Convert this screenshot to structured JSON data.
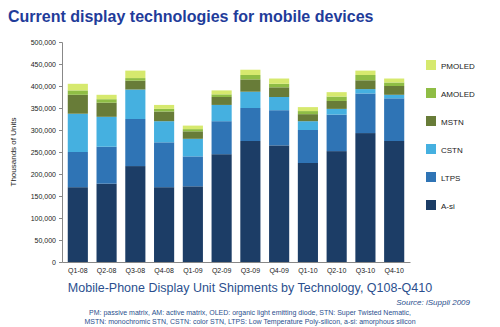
{
  "chart_data": {
    "type": "bar",
    "stacked": true,
    "title": "Current display technologies for mobile devices",
    "y_label": "Thousands of Units",
    "annotations": [
      "Mobile-Phone Display Unit Shipments by Technology, Q108-Q410",
      "Source: iSuppli 2009",
      "PM: passive matrix, AM: active matrix, OLED: organic light emitting diode, STN: Super Twisted Nematic,",
      "MSTN: monochromic STN, CSTN: color STN, LTPS: Low Temperature Poly-silicon, a-si: amorphous silicon"
    ],
    "categories": [
      "Q1-08",
      "Q2-08",
      "Q3-08",
      "Q4-08",
      "Q1-09",
      "Q2-09",
      "Q3-09",
      "Q4-09",
      "Q1-10",
      "Q2-10",
      "Q3-10",
      "Q4-10"
    ],
    "series": [
      {
        "name": "A-si",
        "color": "#1c3d66",
        "values": [
          170000,
          178000,
          218000,
          170000,
          172000,
          245000,
          275000,
          265000,
          225000,
          252000,
          293000,
          275000
        ]
      },
      {
        "name": "LTPS",
        "color": "#2f74b5",
        "values": [
          80000,
          84000,
          107000,
          102000,
          68000,
          75000,
          75000,
          80000,
          75000,
          83000,
          90000,
          97000
        ]
      },
      {
        "name": "CSTN",
        "color": "#45b0e0",
        "values": [
          87000,
          68000,
          67000,
          48000,
          40000,
          37000,
          37000,
          30000,
          20000,
          13000,
          10000,
          8000
        ]
      },
      {
        "name": "MSTN",
        "color": "#687c38",
        "values": [
          43000,
          32000,
          20000,
          22000,
          17000,
          18000,
          28000,
          22000,
          16000,
          18000,
          20000,
          20000
        ]
      },
      {
        "name": "AMOLED",
        "color": "#8fbd45",
        "values": [
          10000,
          8000,
          6000,
          6000,
          5000,
          6000,
          10000,
          8000,
          7000,
          10000,
          12000,
          8000
        ]
      },
      {
        "name": "PMOLED",
        "color": "#d6e96e",
        "values": [
          15000,
          10000,
          17000,
          9000,
          8000,
          9000,
          12000,
          12000,
          9000,
          10000,
          10000,
          9000
        ]
      }
    ],
    "ylim": [
      0,
      500000
    ],
    "yticks": [
      0,
      {
        "value": 50000,
        "label": "50,000"
      },
      {
        "value": 100000,
        "label": "100,000"
      },
      {
        "value": 150000,
        "label": "150,000"
      },
      {
        "value": 200000,
        "label": "200,000"
      },
      {
        "value": 250000,
        "label": "250,000"
      },
      {
        "value": 300000,
        "label": "300,000"
      },
      {
        "value": 350000,
        "label": "350,000"
      },
      {
        "value": 400000,
        "label": "400,000"
      },
      {
        "value": 450000,
        "label": "450,000"
      },
      {
        "value": 500000,
        "label": "500,000"
      }
    ],
    "grid": false,
    "legend": "right"
  }
}
